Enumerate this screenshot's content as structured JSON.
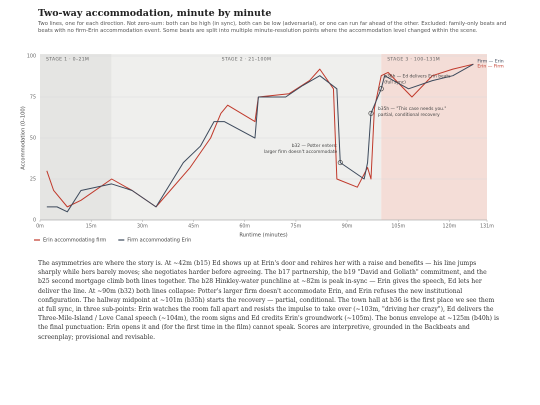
{
  "chart_data": {
    "type": "line",
    "title": "Two-way accommodation, minute by minute",
    "subtitle": "Two lines, one for each direction. Not zero-sum: both can be high (in sync), both can be low (adversarial), or one can run far ahead of the other. Excluded: family-only beats and beats with no firm-Erin accommodation event. Some beats are split into multiple minute-resolution points where the accommodation level changed within the scene.",
    "x_label": "Runtime (minutes)",
    "y_label": "Accommodation (0–100)",
    "xlim": [
      0,
      131
    ],
    "ylim": [
      0,
      100
    ],
    "xticks": [
      {
        "value": 0,
        "label": "0m"
      },
      {
        "value": 15,
        "label": "15m"
      },
      {
        "value": 30,
        "label": "30m"
      },
      {
        "value": 45,
        "label": "45m"
      },
      {
        "value": 60,
        "label": "60m"
      },
      {
        "value": 75,
        "label": "75m"
      },
      {
        "value": 90,
        "label": "90m"
      },
      {
        "value": 105,
        "label": "105m"
      },
      {
        "value": 120,
        "label": "120m"
      },
      {
        "value": 131,
        "label": "131m"
      }
    ],
    "yticks": [
      0,
      25,
      50,
      75,
      100
    ],
    "grid": true,
    "stages": [
      {
        "label": "STAGE 1 · 0–21M",
        "start": 0,
        "end": 21,
        "color": "#e5e5e3"
      },
      {
        "label": "STAGE 2 · 21–100M",
        "start": 21,
        "end": 100,
        "color": "#efefed"
      },
      {
        "label": "STAGE 3 · 100–131M",
        "start": 100,
        "end": 131,
        "color": "#f4ddd7"
      }
    ],
    "series": [
      {
        "name": "Erin accommodating firm",
        "color": "#c0392b",
        "end_label": "Erin — Firm",
        "x": [
          2,
          4,
          8,
          12,
          21,
          27,
          34,
          44,
          50,
          53,
          55,
          63,
          64,
          73,
          79,
          82,
          86,
          87,
          93,
          96,
          97,
          98,
          100,
          102,
          109,
          115,
          121,
          127
        ],
        "values": [
          30,
          18,
          8,
          12,
          25,
          18,
          8,
          32,
          50,
          65,
          70,
          60,
          75,
          77,
          85,
          92,
          80,
          25,
          20,
          32,
          25,
          68,
          88,
          90,
          75,
          88,
          92,
          95
        ]
      },
      {
        "name": "Firm accommodating Erin",
        "color": "#3d4a5c",
        "end_label": "Firm — Erin",
        "x": [
          2,
          5,
          8,
          12,
          21,
          27,
          34,
          42,
          47,
          51,
          54,
          63,
          64,
          72,
          77,
          82,
          87,
          88,
          95,
          96,
          97,
          100,
          101,
          108,
          115,
          121,
          127
        ],
        "values": [
          8,
          8,
          5,
          18,
          22,
          18,
          8,
          35,
          45,
          60,
          60,
          50,
          75,
          75,
          82,
          88,
          80,
          35,
          25,
          35,
          65,
          80,
          88,
          80,
          85,
          88,
          95
        ]
      }
    ],
    "annotations": [
      {
        "lines": [
          "b32 — Potter enters:",
          "larger firm doesn't accommodate"
        ],
        "x": 88,
        "y": 35
      },
      {
        "lines": [
          "b36h — Ed delivers Erin beats",
          "(full sync)"
        ],
        "x": 100,
        "y": 80
      },
      {
        "lines": [
          "b35h — \"This case needs you.\"",
          "partial, conditional recovery"
        ],
        "x": 97,
        "y": 65
      }
    ]
  },
  "body_text": "The asymmetries are where the story is. At ~42m (b15) Ed shows up at Erin's door and rehires her with a raise and benefits — his line jumps sharply while hers barely moves; she negotiates harder before agreeing. The b17 partnership, the b19 \"David and Goliath\" commitment, and the b25 second mortgage climb both lines together. The b28 Hinkley-water punchline at ~82m is peak in-sync — Erin gives the speech, Ed lets her deliver the line. At ~90m (b32) both lines collapse: Potter's larger firm doesn't accommodate Erin, and Erin refuses the new institutional configuration. The hallway midpoint at ~101m (b35h) starts the recovery — partial, conditional. The town hall at b36 is the first place we see them at full sync, in three sub-points: Erin watches the room fall apart and resists the impulse to take over (~103m, \"driving her crazy\"), Ed delivers the Three-Mile-Island / Love Canal speech (~104m), the room signs and Ed credits Erin's groundwork (~105m). The bonus envelope at ~125m (b40h) is the final punctuation: Erin opens it and (for the first time in the film) cannot speak. Scores are interpretive, grounded in the Backbeats and screenplay; provisional and revisable."
}
